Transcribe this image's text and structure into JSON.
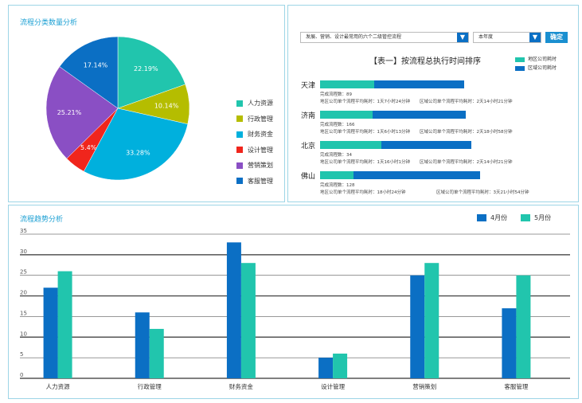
{
  "pie_panel": {
    "title": "流程分类数量分析",
    "slices": [
      {
        "label": "人力资源",
        "value": 22.19,
        "text": "22.19%",
        "color": "#21c5ad"
      },
      {
        "label": "行政管理",
        "value": 10.14,
        "text": "10.14%",
        "color": "#b5bd00"
      },
      {
        "label": "财务资金",
        "value": 33.28,
        "text": "33.28%",
        "color": "#00b0dd"
      },
      {
        "label": "设计管理",
        "value": 5.4,
        "text": "5.4%",
        "color": "#f0251c"
      },
      {
        "label": "营销策划",
        "value": 25.21,
        "text": "25.21%",
        "color": "#8a4fc4"
      },
      {
        "label": "客服管理",
        "value": 17.14,
        "text": "17.14%",
        "color": "#0b6fc4"
      }
    ]
  },
  "rank_panel": {
    "process_select": "发展、营销、设计最常用的六个二级管控流程",
    "period_select": "本年度",
    "confirm_label": "确定",
    "table_title": "【表一】按流程总执行时间排序",
    "legend": [
      {
        "label": "地区公司耗时",
        "color": "#21c5ad"
      },
      {
        "label": "区域公司耗时",
        "color": "#0b6fc4"
      }
    ],
    "rows": [
      {
        "city": "天津",
        "local_ratio": 0.37,
        "total_ratio": 0.99,
        "count": "完成流程数：89",
        "local": "地区公司单个流程平均耗时：1天7小时24分钟",
        "region": "区域公司单个流程平均耗时：2天14小时21分钟"
      },
      {
        "city": "济南",
        "local_ratio": 0.36,
        "total_ratio": 1.0,
        "count": "完成流程数：166",
        "local": "地区公司单个流程平均耗时：1天6小时13分钟",
        "region": "区域公司单个流程平均耗时：2天18小时58分钟"
      },
      {
        "city": "北京",
        "local_ratio": 0.42,
        "total_ratio": 1.04,
        "count": "完成流程数：34",
        "local": "地区公司单个流程平均耗时：1天16小时1分钟",
        "region": "区域公司单个流程平均耗时：2天14小时21分钟"
      },
      {
        "city": "佛山",
        "local_ratio": 0.23,
        "total_ratio": 1.1,
        "count": "完成流程数：128",
        "local": "地区公司单个流程平均耗时：18小时24分钟",
        "region": "区域公司单个流程平均耗时：3天21小时54分钟"
      }
    ]
  },
  "trend_panel": {
    "title": "流程趋势分析"
  },
  "chart_data": {
    "type": "bar",
    "title": "流程趋势分析",
    "categories": [
      "人力资源",
      "行政管理",
      "财务资金",
      "设计管理",
      "营销策划",
      "客服管理"
    ],
    "series": [
      {
        "name": "4月份",
        "values": [
          22,
          16,
          33,
          5,
          25,
          17
        ],
        "color": "#0b6fc4"
      },
      {
        "name": "5月份",
        "values": [
          26,
          12,
          28,
          6,
          28,
          25
        ],
        "color": "#21c5ad"
      }
    ],
    "ylim": [
      0,
      35
    ],
    "yticks": [
      0,
      5,
      10,
      15,
      20,
      25,
      30,
      35
    ],
    "legend_position": "top-right",
    "grid": true
  }
}
